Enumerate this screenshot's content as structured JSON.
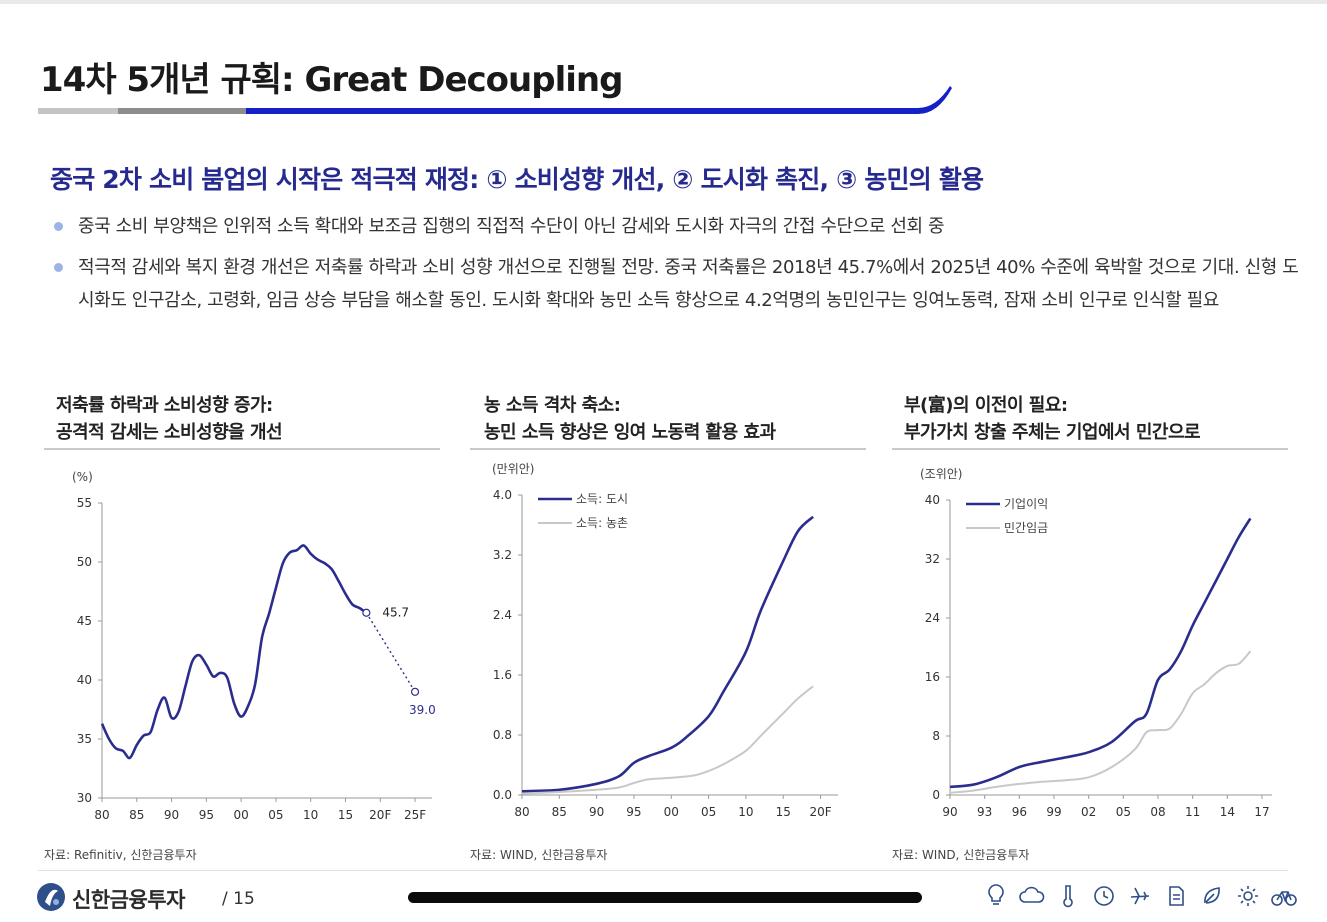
{
  "page": {
    "title": "14차 5개년 규획: Great Decoupling",
    "subtitle": "중국 2차 소비 붐업의 시작은 적극적 재정: ① 소비성향 개선, ② 도시화 촉진, ③ 농민의 활용",
    "bullets": [
      "중국 소비 부양책은 인위적 소득 확대와 보조금 집행의 직접적 수단이 아닌 감세와 도시화 자극의 간접 수단으로 선회 중",
      "적극적 감세와 복지 환경 개선은 저축률 하락과 소비 성향 개선으로 진행될 전망. 중국 저축률은 2018년 45.7%에서 2025년 40% 수준에 육박할 것으로 기대. 신형 도시화도 인구감소, 고령화, 임금 상승 부담을 해소할 동인. 도시화 확대와 농민 소득 향상으로 4.2억명의 농민인구는 잉여노동력, 잠재 소비 인구로 인식할 필요"
    ],
    "footer": {
      "brand": "신한금융투자",
      "page_number": "/ 15"
    },
    "accent_color": "#2a2a8c",
    "title_rule_colors": [
      "#c4c4c4",
      "#8d8d8d",
      "#1620c8"
    ],
    "footer_icons": [
      "bulb-icon",
      "cloud-icon",
      "thermometer-icon",
      "clock-icon",
      "airplane-icon",
      "document-icon",
      "leaf-icon",
      "gear-icon",
      "bicycle-icon"
    ]
  },
  "chart_data": [
    {
      "type": "line",
      "heading_line1": "저축률 하락과 소비성향 증가:",
      "heading_line2": "공격적 감세는 소비성향을 개선",
      "unit": "(%)",
      "x_ticks": [
        "80",
        "85",
        "90",
        "95",
        "00",
        "05",
        "10",
        "15",
        "20F",
        "25F"
      ],
      "y_ticks": [
        "55",
        "50",
        "45",
        "40",
        "35",
        "30"
      ],
      "ylim": [
        30,
        55
      ],
      "xlim": [
        1980,
        2026
      ],
      "series": [
        {
          "color": "#2b2d8e",
          "points": [
            [
              1980,
              36.3
            ],
            [
              1981,
              35.0
            ],
            [
              1982,
              34.2
            ],
            [
              1983,
              34.0
            ],
            [
              1984,
              33.4
            ],
            [
              1985,
              34.5
            ],
            [
              1986,
              35.3
            ],
            [
              1987,
              35.6
            ],
            [
              1988,
              37.5
            ],
            [
              1989,
              38.5
            ],
            [
              1990,
              36.8
            ],
            [
              1991,
              37.3
            ],
            [
              1992,
              39.5
            ],
            [
              1993,
              41.6
            ],
            [
              1994,
              42.1
            ],
            [
              1995,
              41.3
            ],
            [
              1996,
              40.3
            ],
            [
              1997,
              40.6
            ],
            [
              1998,
              40.2
            ],
            [
              1999,
              38.0
            ],
            [
              2000,
              36.9
            ],
            [
              2001,
              37.8
            ],
            [
              2002,
              39.6
            ],
            [
              2003,
              43.6
            ],
            [
              2004,
              45.6
            ],
            [
              2005,
              47.8
            ],
            [
              2006,
              49.9
            ],
            [
              2007,
              50.8
            ],
            [
              2008,
              51.0
            ],
            [
              2009,
              51.4
            ],
            [
              2010,
              50.7
            ],
            [
              2011,
              50.2
            ],
            [
              2012,
              49.9
            ],
            [
              2013,
              49.4
            ],
            [
              2014,
              48.4
            ],
            [
              2015,
              47.3
            ],
            [
              2016,
              46.4
            ],
            [
              2017,
              46.1
            ],
            [
              2018,
              45.7
            ]
          ]
        },
        {
          "style": "dotted",
          "color": "#2b2d8e",
          "points": [
            [
              2018,
              45.7
            ],
            [
              2025,
              39.0
            ]
          ]
        }
      ],
      "annotations": [
        {
          "x": 2018,
          "y": 45.7,
          "label": "45.7",
          "color": "#222"
        },
        {
          "x": 2025,
          "y": 39.0,
          "label": "39.0",
          "color": "#2b2d8e"
        }
      ],
      "source": "자료: Refinitiv, 신한금융투자"
    },
    {
      "type": "line",
      "heading_line1": "농 소득 격차 축소:",
      "heading_line2": "농민 소득 향상은 잉여 노동력 활용 효과",
      "unit": "(만위안)",
      "x_ticks": [
        "80",
        "85",
        "90",
        "95",
        "00",
        "05",
        "10",
        "15",
        "20F"
      ],
      "y_ticks": [
        "4.0",
        "3.2",
        "2.4",
        "1.6",
        "0.8",
        "0.0"
      ],
      "ylim": [
        0,
        4
      ],
      "xlim": [
        1980,
        2021
      ],
      "legend": [
        "소득: 도시",
        "소득: 농촌"
      ],
      "series": [
        {
          "name": "소득: 도시",
          "color": "#2b2d8e",
          "points": [
            [
              1980,
              0.05
            ],
            [
              1985,
              0.07
            ],
            [
              1990,
              0.15
            ],
            [
              1993,
              0.25
            ],
            [
              1995,
              0.43
            ],
            [
              1997,
              0.52
            ],
            [
              2000,
              0.63
            ],
            [
              2002,
              0.77
            ],
            [
              2005,
              1.05
            ],
            [
              2007,
              1.38
            ],
            [
              2010,
              1.91
            ],
            [
              2012,
              2.46
            ],
            [
              2015,
              3.12
            ],
            [
              2017,
              3.52
            ],
            [
              2019,
              3.71
            ]
          ]
        },
        {
          "name": "소득: 농촌",
          "color": "#c8c8c8",
          "points": [
            [
              1980,
              0.02
            ],
            [
              1985,
              0.04
            ],
            [
              1990,
              0.07
            ],
            [
              1993,
              0.1
            ],
            [
              1995,
              0.16
            ],
            [
              1997,
              0.21
            ],
            [
              2000,
              0.23
            ],
            [
              2003,
              0.26
            ],
            [
              2005,
              0.32
            ],
            [
              2007,
              0.41
            ],
            [
              2010,
              0.59
            ],
            [
              2012,
              0.79
            ],
            [
              2015,
              1.09
            ],
            [
              2017,
              1.29
            ],
            [
              2019,
              1.45
            ]
          ]
        }
      ],
      "source": "자료: WIND, 신한금융투자"
    },
    {
      "type": "line",
      "heading_line1": "부(富)의 이전이 필요:",
      "heading_line2": "부가가치 창출 주체는 기업에서 민간으로",
      "unit": "(조위안)",
      "x_ticks": [
        "90",
        "93",
        "96",
        "99",
        "02",
        "05",
        "08",
        "11",
        "14",
        "17"
      ],
      "y_ticks": [
        "40",
        "32",
        "24",
        "16",
        "8",
        "0"
      ],
      "ylim": [
        0,
        40
      ],
      "xlim": [
        1990,
        2017
      ],
      "legend": [
        "기업이익",
        "민간임금"
      ],
      "series": [
        {
          "name": "기업이익",
          "color": "#2b2d8e",
          "points": [
            [
              1990,
              1.1
            ],
            [
              1992,
              1.4
            ],
            [
              1994,
              2.4
            ],
            [
              1996,
              3.8
            ],
            [
              1998,
              4.5
            ],
            [
              2000,
              5.1
            ],
            [
              2002,
              5.8
            ],
            [
              2004,
              7.2
            ],
            [
              2006,
              10.0
            ],
            [
              2007,
              11.0
            ],
            [
              2008,
              15.6
            ],
            [
              2009,
              17.0
            ],
            [
              2010,
              19.5
            ],
            [
              2011,
              23.0
            ],
            [
              2012,
              26.0
            ],
            [
              2013,
              29.0
            ],
            [
              2014,
              32.0
            ],
            [
              2015,
              35.0
            ],
            [
              2016,
              37.5
            ]
          ]
        },
        {
          "name": "민간임금",
          "color": "#c8c8c8",
          "points": [
            [
              1990,
              0.3
            ],
            [
              1992,
              0.6
            ],
            [
              1994,
              1.1
            ],
            [
              1996,
              1.5
            ],
            [
              1998,
              1.8
            ],
            [
              2000,
              2.0
            ],
            [
              2002,
              2.4
            ],
            [
              2004,
              3.8
            ],
            [
              2006,
              6.2
            ],
            [
              2007,
              8.5
            ],
            [
              2008,
              8.8
            ],
            [
              2009,
              9.0
            ],
            [
              2010,
              11.0
            ],
            [
              2011,
              13.8
            ],
            [
              2012,
              15.0
            ],
            [
              2013,
              16.5
            ],
            [
              2014,
              17.5
            ],
            [
              2015,
              17.8
            ],
            [
              2016,
              19.5
            ]
          ]
        }
      ],
      "source": "자료: WIND, 신한금융투자"
    }
  ]
}
